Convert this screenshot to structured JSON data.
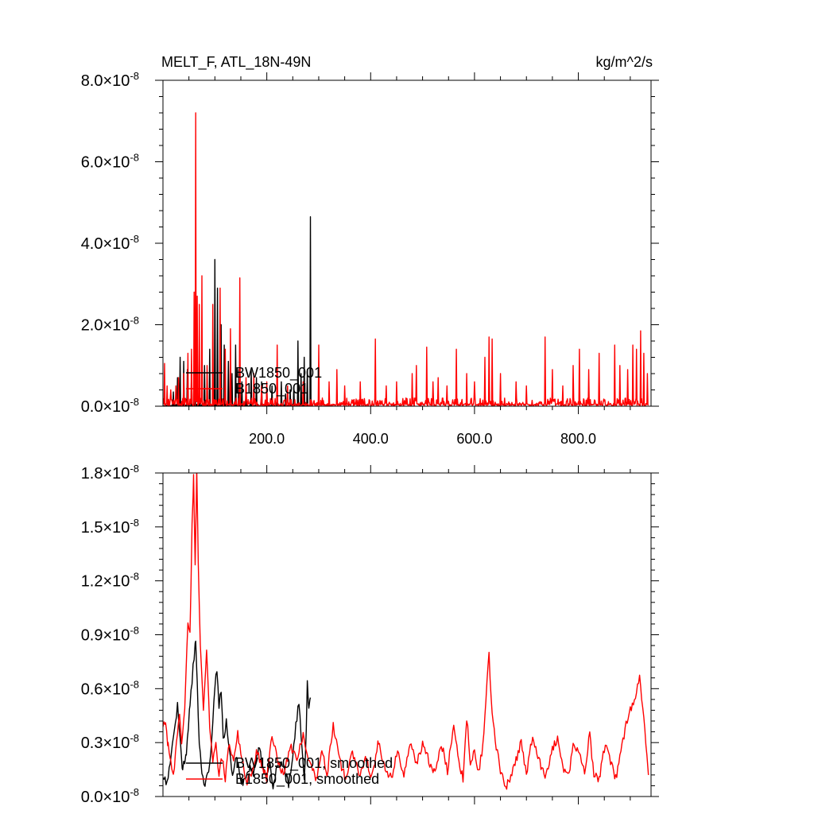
{
  "chart_data": [
    {
      "type": "line",
      "title_left": "MELT_F, ATL_18N-49N",
      "title_right": "kg/m^2/s",
      "xlim": [
        0,
        940
      ],
      "ylim": [
        0,
        8e-08
      ],
      "x_ticks": [
        200,
        400,
        600,
        800
      ],
      "x_tick_labels": [
        "200.0",
        "400.0",
        "600.0",
        "800.0"
      ],
      "y_ticks": [
        0,
        2e-08,
        4e-08,
        6e-08,
        8e-08
      ],
      "y_tick_mantissa": [
        "0.0",
        "2.0",
        "4.0",
        "6.0",
        "8.0"
      ],
      "y_tick_exponent": "-8",
      "series": [
        {
          "name": "BW1850_001",
          "color": "#000000",
          "x_range": [
            1,
            285
          ],
          "baseline": 1.5e-11,
          "noise": 5e-10,
          "spikes": [
            [
              20,
              3.5e-09
            ],
            [
              28,
              7e-09
            ],
            [
              33,
              1.2e-08
            ],
            [
              40,
              1.1e-08
            ],
            [
              47,
              9e-09
            ],
            [
              55,
              9e-09
            ],
            [
              62,
              1.2e-08
            ],
            [
              70,
              1.1e-08
            ],
            [
              80,
              1e-08
            ],
            [
              90,
              1.4e-08
            ],
            [
              100,
              3.6e-08
            ],
            [
              105,
              2.9e-08
            ],
            [
              112,
              2e-08
            ],
            [
              118,
              1.5e-08
            ],
            [
              126,
              1.1e-08
            ],
            [
              133,
              8e-09
            ],
            [
              140,
              1.5e-08
            ],
            [
              146,
              9e-09
            ],
            [
              152,
              6e-09
            ],
            [
              160,
              5e-09
            ],
            [
              170,
              9e-09
            ],
            [
              180,
              7e-09
            ],
            [
              190,
              6e-09
            ],
            [
              200,
              5e-09
            ],
            [
              210,
              5e-09
            ],
            [
              220,
              3e-09
            ],
            [
              228,
              6e-09
            ],
            [
              236,
              3e-09
            ],
            [
              245,
              4e-09
            ],
            [
              252,
              5e-09
            ],
            [
              260,
              1.6e-08
            ],
            [
              266,
              8e-09
            ],
            [
              272,
              1.2e-08
            ],
            [
              278,
              9e-09
            ],
            [
              284,
              4.65e-08
            ]
          ]
        },
        {
          "name": "B1850_001",
          "color": "#ff0000",
          "x_range": [
            1,
            935
          ],
          "baseline": 1.5e-11,
          "noise": 2e-09,
          "spikes": [
            [
              3,
              1.05e-08
            ],
            [
              8,
              5e-09
            ],
            [
              15,
              4e-09
            ],
            [
              25,
              5e-09
            ],
            [
              30,
              7e-09
            ],
            [
              40,
              8e-09
            ],
            [
              48,
              1.3e-08
            ],
            [
              55,
              1.4e-08
            ],
            [
              60,
              2.8e-08
            ],
            [
              63,
              7.2e-08
            ],
            [
              66,
              2.7e-08
            ],
            [
              70,
              2.5e-08
            ],
            [
              75,
              3.2e-08
            ],
            [
              85,
              1e-08
            ],
            [
              96,
              2.5e-08
            ],
            [
              110,
              2.9e-08
            ],
            [
              120,
              1.4e-08
            ],
            [
              130,
              1.9e-08
            ],
            [
              148,
              3.15e-08
            ],
            [
              160,
              7e-09
            ],
            [
              175,
              8e-09
            ],
            [
              190,
              5e-09
            ],
            [
              200,
              6e-09
            ],
            [
              220,
              1.5e-08
            ],
            [
              240,
              5e-09
            ],
            [
              270,
              6e-09
            ],
            [
              300,
              1.5e-08
            ],
            [
              320,
              6e-09
            ],
            [
              335,
              9e-09
            ],
            [
              350,
              5e-09
            ],
            [
              380,
              6e-09
            ],
            [
              409,
              1.65e-08
            ],
            [
              430,
              5e-09
            ],
            [
              450,
              6e-09
            ],
            [
              480,
              8e-09
            ],
            [
              488,
              1e-08
            ],
            [
              508,
              1.45e-08
            ],
            [
              520,
              6e-09
            ],
            [
              530,
              7e-09
            ],
            [
              547,
              5e-09
            ],
            [
              565,
              1.4e-08
            ],
            [
              585,
              8e-09
            ],
            [
              600,
              6e-09
            ],
            [
              620,
              1.2e-08
            ],
            [
              628,
              1.7e-08
            ],
            [
              634,
              1.65e-08
            ],
            [
              650,
              8e-09
            ],
            [
              680,
              6e-09
            ],
            [
              700,
              5e-09
            ],
            [
              736,
              1.7e-08
            ],
            [
              750,
              9e-09
            ],
            [
              770,
              5e-09
            ],
            [
              790,
              1e-08
            ],
            [
              802,
              1.4e-08
            ],
            [
              820,
              9e-09
            ],
            [
              840,
              1.3e-08
            ],
            [
              870,
              1.5e-08
            ],
            [
              880,
              1e-08
            ],
            [
              895,
              9e-09
            ],
            [
              905,
              1.5e-08
            ],
            [
              912,
              1.4e-08
            ],
            [
              920,
              1.85e-08
            ],
            [
              926,
              1.3e-08
            ],
            [
              933,
              8e-09
            ]
          ]
        }
      ],
      "legend": {
        "placement": "lower-left",
        "entries": [
          "BW1850_001",
          "B1850_001"
        ]
      }
    },
    {
      "type": "line",
      "xlim": [
        0,
        940
      ],
      "ylim": [
        0,
        1.8e-08
      ],
      "x_ticks": [
        200,
        400,
        600,
        800
      ],
      "y_ticks": [
        0,
        3e-09,
        6e-09,
        9e-09,
        1.2e-08,
        1.5e-08,
        1.8e-08
      ],
      "y_tick_mantissa": [
        "0.0",
        "0.3",
        "0.6",
        "0.9",
        "1.2",
        "1.5",
        "1.8"
      ],
      "y_tick_exponent": "-8",
      "series": [
        {
          "name": "BW1850_001, smoothed",
          "color": "#000000",
          "x_range": [
            1,
            285
          ],
          "anchors": [
            [
              0,
              1e-09
            ],
            [
              8,
              7e-10
            ],
            [
              14,
              2e-09
            ],
            [
              22,
              3.5e-09
            ],
            [
              28,
              5e-09
            ],
            [
              33,
              3.2e-09
            ],
            [
              38,
              1.4e-09
            ],
            [
              45,
              2.5e-09
            ],
            [
              52,
              5e-09
            ],
            [
              58,
              7.2e-09
            ],
            [
              63,
              8.8e-09
            ],
            [
              66,
              6.2e-09
            ],
            [
              70,
              3e-09
            ],
            [
              75,
              1.2e-09
            ],
            [
              82,
              7e-10
            ],
            [
              88,
              1.4e-09
            ],
            [
              94,
              3e-09
            ],
            [
              100,
              6.2e-09
            ],
            [
              104,
              7e-09
            ],
            [
              108,
              5e-09
            ],
            [
              112,
              6e-09
            ],
            [
              116,
              3.2e-09
            ],
            [
              122,
              4.2e-09
            ],
            [
              128,
              2.5e-09
            ],
            [
              134,
              1.2e-09
            ],
            [
              140,
              2.2e-09
            ],
            [
              145,
              1.7e-09
            ],
            [
              152,
              8e-10
            ],
            [
              160,
              1e-09
            ],
            [
              168,
              1.7e-09
            ],
            [
              175,
              1.2e-09
            ],
            [
              184,
              2.8e-09
            ],
            [
              190,
              2e-09
            ],
            [
              198,
              1e-09
            ],
            [
              206,
              1.8e-09
            ],
            [
              212,
              6e-10
            ],
            [
              220,
              1.6e-09
            ],
            [
              228,
              2e-09
            ],
            [
              236,
              1.2e-09
            ],
            [
              242,
              7e-10
            ],
            [
              250,
              2.2e-09
            ],
            [
              256,
              4e-09
            ],
            [
              262,
              5.2e-09
            ],
            [
              268,
              2.5e-09
            ],
            [
              272,
              8e-10
            ],
            [
              276,
              3.5e-09
            ],
            [
              278,
              6.2e-09
            ],
            [
              281,
              5e-09
            ],
            [
              284,
              5.5e-09
            ]
          ]
        },
        {
          "name": "B1850_001, smoothed",
          "color": "#ff0000",
          "x_range": [
            1,
            935
          ],
          "anchors": [
            [
              0,
              3.8e-09
            ],
            [
              5,
              4.2e-09
            ],
            [
              10,
              2.8e-09
            ],
            [
              15,
              1.8e-09
            ],
            [
              20,
              1.2e-09
            ],
            [
              26,
              3e-09
            ],
            [
              32,
              4.5e-09
            ],
            [
              36,
              3e-09
            ],
            [
              42,
              5e-09
            ],
            [
              48,
              9.5e-09
            ],
            [
              52,
              9e-09
            ],
            [
              56,
              1.5e-08
            ],
            [
              59,
              1.77e-08
            ],
            [
              62,
              1.27e-08
            ],
            [
              65,
              1.8e-08
            ],
            [
              68,
              1.3e-08
            ],
            [
              72,
              8.5e-09
            ],
            [
              78,
              5e-09
            ],
            [
              84,
              8.2e-09
            ],
            [
              90,
              4e-09
            ],
            [
              96,
              2e-09
            ],
            [
              102,
              3e-09
            ],
            [
              108,
              1.2e-09
            ],
            [
              114,
              2.2e-09
            ],
            [
              120,
              1e-09
            ],
            [
              128,
              3e-09
            ],
            [
              136,
              2e-09
            ],
            [
              144,
              3.5e-09
            ],
            [
              152,
              2.2e-09
            ],
            [
              160,
              8e-10
            ],
            [
              170,
              1.2e-09
            ],
            [
              180,
              2.5e-09
            ],
            [
              190,
              1.8e-09
            ],
            [
              200,
              1e-09
            ],
            [
              210,
              3.5e-09
            ],
            [
              220,
              2.2e-09
            ],
            [
              232,
              1.2e-09
            ],
            [
              245,
              2.8e-09
            ],
            [
              258,
              2e-09
            ],
            [
              270,
              3.5e-09
            ],
            [
              282,
              2e-09
            ],
            [
              295,
              1e-09
            ],
            [
              306,
              2.5e-09
            ],
            [
              316,
              1.2e-09
            ],
            [
              328,
              4e-09
            ],
            [
              340,
              2e-09
            ],
            [
              352,
              1e-09
            ],
            [
              365,
              2.5e-09
            ],
            [
              378,
              1.2e-09
            ],
            [
              390,
              2.2e-09
            ],
            [
              402,
              1e-09
            ],
            [
              415,
              3e-09
            ],
            [
              428,
              1.6e-09
            ],
            [
              440,
              1e-09
            ],
            [
              452,
              2.5e-09
            ],
            [
              464,
              1.2e-09
            ],
            [
              476,
              3e-09
            ],
            [
              488,
              1.8e-09
            ],
            [
              500,
              3e-09
            ],
            [
              512,
              2e-09
            ],
            [
              524,
              1.2e-09
            ],
            [
              536,
              3e-09
            ],
            [
              548,
              1.4e-09
            ],
            [
              560,
              4.2e-09
            ],
            [
              570,
              2e-09
            ],
            [
              578,
              1e-09
            ],
            [
              585,
              4.4e-09
            ],
            [
              592,
              2e-09
            ],
            [
              600,
              2.5e-09
            ],
            [
              608,
              1.4e-09
            ],
            [
              616,
              2.8e-09
            ],
            [
              624,
              6.2e-09
            ],
            [
              628,
              7.9e-09
            ],
            [
              632,
              5.5e-09
            ],
            [
              640,
              3e-09
            ],
            [
              650,
              1.5e-09
            ],
            [
              660,
              5e-10
            ],
            [
              670,
              1e-09
            ],
            [
              680,
              2e-09
            ],
            [
              690,
              3e-09
            ],
            [
              700,
              1.2e-09
            ],
            [
              712,
              3.5e-09
            ],
            [
              724,
              2e-09
            ],
            [
              736,
              1e-09
            ],
            [
              748,
              2.5e-09
            ],
            [
              760,
              3.2e-09
            ],
            [
              772,
              1.4e-09
            ],
            [
              782,
              1.2e-09
            ],
            [
              790,
              3e-09
            ],
            [
              800,
              2.5e-09
            ],
            [
              812,
              1.4e-09
            ],
            [
              822,
              3.5e-09
            ],
            [
              830,
              1.2e-09
            ],
            [
              840,
              1e-09
            ],
            [
              852,
              3e-09
            ],
            [
              862,
              2e-09
            ],
            [
              872,
              1e-09
            ],
            [
              882,
              2.5e-09
            ],
            [
              892,
              4e-09
            ],
            [
              902,
              5e-09
            ],
            [
              910,
              5.5e-09
            ],
            [
              918,
              6.6e-09
            ],
            [
              924,
              5e-09
            ],
            [
              930,
              2.8e-09
            ],
            [
              935,
              1.2e-09
            ]
          ]
        }
      ],
      "legend": {
        "placement": "lower-left",
        "entries": [
          "BW1850_001, smoothed",
          "B1850_001, smoothed"
        ]
      }
    }
  ]
}
